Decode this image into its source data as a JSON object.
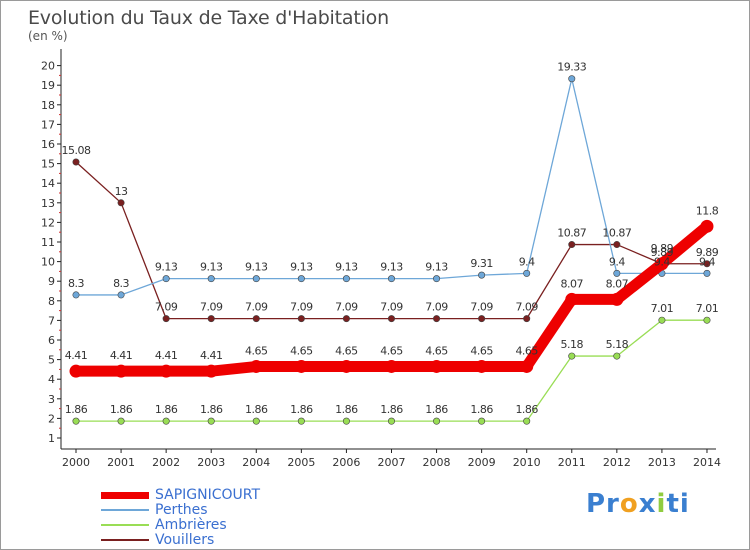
{
  "chart_data": {
    "type": "line",
    "title": "Evolution du Taux de Taxe d'Habitation",
    "ylabel": "(en %)",
    "xlabel": "",
    "x": [
      "2000",
      "2001",
      "2002",
      "2003",
      "2004",
      "2005",
      "2006",
      "2007",
      "2008",
      "2009",
      "2010",
      "2011",
      "2012",
      "2013",
      "2014"
    ],
    "yticks": [
      1,
      2,
      3,
      4,
      5,
      6,
      7,
      8,
      9,
      10,
      11,
      12,
      13,
      14,
      15,
      16,
      17,
      18,
      19,
      20
    ],
    "ylim": [
      1,
      20
    ],
    "grid": false,
    "legend_position": "bottom-left",
    "series": [
      {
        "name": "SAPIGNICOURT",
        "color": "#ee0000",
        "values": [
          4.41,
          4.41,
          4.41,
          4.41,
          4.65,
          4.65,
          4.65,
          4.65,
          4.65,
          4.65,
          4.65,
          8.07,
          8.07,
          9.89,
          11.8
        ],
        "labels": [
          "4.41",
          "4.41",
          "4.41",
          "4.41",
          "4.65",
          "4.65",
          "4.65",
          "4.65",
          "4.65",
          "4.65",
          "4.65",
          "8.07",
          "8.07",
          "9.89",
          "11.8"
        ]
      },
      {
        "name": "Perthes",
        "color": "#6ea7d8",
        "values": [
          8.3,
          8.3,
          9.13,
          9.13,
          9.13,
          9.13,
          9.13,
          9.13,
          9.13,
          9.31,
          9.4,
          19.33,
          9.4,
          9.4,
          9.4
        ],
        "labels": [
          "8.3",
          "8.3",
          "9.13",
          "9.13",
          "9.13",
          "9.13",
          "9.13",
          "9.13",
          "9.13",
          "9.31",
          "9.4",
          "19.33",
          "9.4",
          "9.4",
          "9.4"
        ]
      },
      {
        "name": "Ambrières",
        "color": "#99dd55",
        "values": [
          1.86,
          1.86,
          1.86,
          1.86,
          1.86,
          1.86,
          1.86,
          1.86,
          1.86,
          1.86,
          1.86,
          5.18,
          5.18,
          7.01,
          7.01
        ],
        "labels": [
          "1.86",
          "1.86",
          "1.86",
          "1.86",
          "1.86",
          "1.86",
          "1.86",
          "1.86",
          "1.86",
          "1.86",
          "1.86",
          "5.18",
          "5.18",
          "7.01",
          "7.01"
        ]
      },
      {
        "name": "Vouillers",
        "color": "#7a2020",
        "values": [
          15.08,
          13,
          7.09,
          7.09,
          7.09,
          7.09,
          7.09,
          7.09,
          7.09,
          7.09,
          7.09,
          10.87,
          10.87,
          9.89,
          9.89
        ],
        "labels": [
          "15.08",
          "13",
          "7.09",
          "7.09",
          "7.09",
          "7.09",
          "7.09",
          "7.09",
          "7.09",
          "7.09",
          "7.09",
          "10.87",
          "10.87",
          "9.89",
          "9.89"
        ]
      }
    ]
  },
  "logo": {
    "parts": [
      "Pr",
      "o",
      "x",
      "i",
      "ti"
    ],
    "colors": [
      "#3a7fd0",
      "#f0a020",
      "#3a7fd0",
      "#90cc40",
      "#3a7fd0"
    ]
  }
}
